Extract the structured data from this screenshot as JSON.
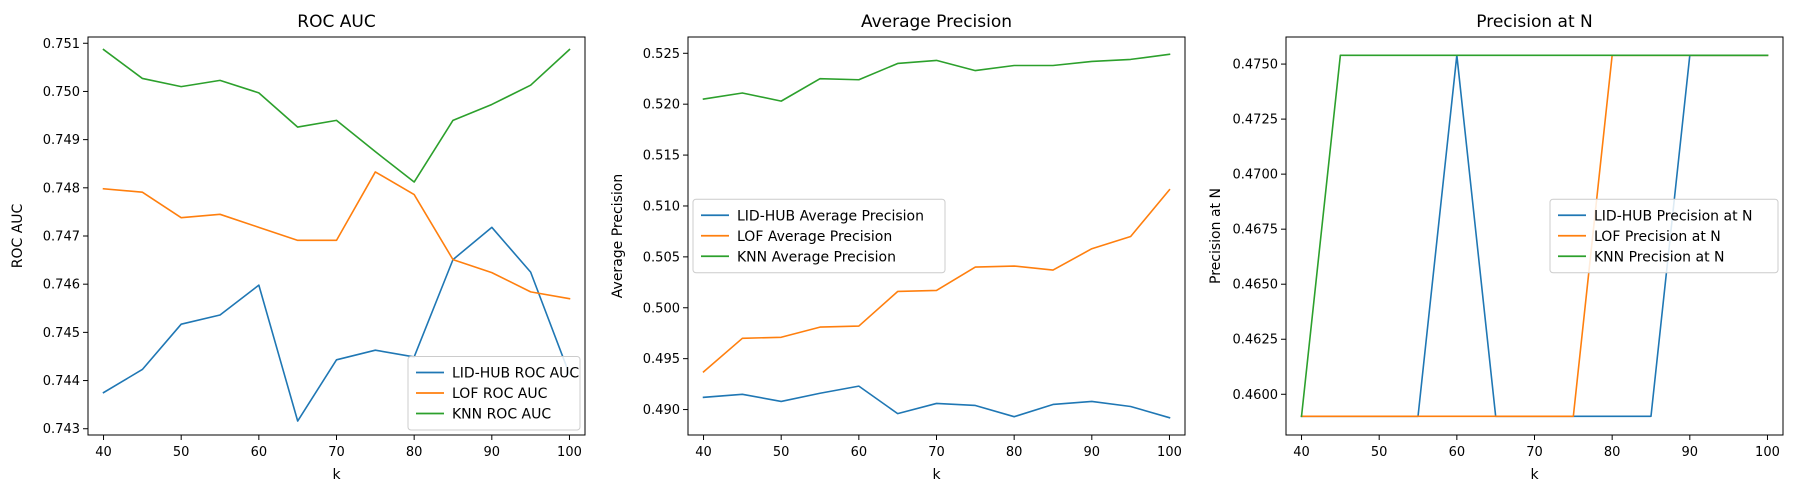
{
  "figure": {
    "background": "#ffffff",
    "colors": {
      "LID-HUB": "#1f77b4",
      "LOF": "#ff7f0e",
      "KNN": "#2ca02c"
    }
  },
  "chart_data": [
    {
      "type": "line",
      "title": "ROC AUC",
      "xlabel": "k",
      "ylabel": "ROC AUC",
      "x": [
        40,
        45,
        50,
        55,
        60,
        65,
        70,
        75,
        80,
        85,
        90,
        95,
        100
      ],
      "xlim": [
        38,
        102
      ],
      "xticks": [
        40,
        50,
        60,
        70,
        80,
        90,
        100
      ],
      "ylim": [
        0.74287,
        0.75113
      ],
      "yticks": [
        0.743,
        0.744,
        0.745,
        0.746,
        0.747,
        0.748,
        0.749,
        0.75,
        0.751
      ],
      "ytick_labels": [
        "0.743",
        "0.744",
        "0.745",
        "0.746",
        "0.747",
        "0.748",
        "0.749",
        "0.750",
        "0.751"
      ],
      "legend": "lower-right",
      "grid": false,
      "series": [
        {
          "name": "LID-HUB ROC AUC",
          "color": "#1f77b4",
          "values": [
            0.74375,
            0.74423,
            0.74517,
            0.74536,
            0.74598,
            0.74316,
            0.74443,
            0.74463,
            0.74449,
            0.74651,
            0.74718,
            0.74625,
            0.74413
          ]
        },
        {
          "name": "LOF ROC AUC",
          "color": "#ff7f0e",
          "values": [
            0.74798,
            0.74791,
            0.74738,
            0.74745,
            0.74718,
            0.74691,
            0.74691,
            0.74833,
            0.74786,
            0.74651,
            0.74624,
            0.74584,
            0.7457
          ]
        },
        {
          "name": "KNN ROC AUC",
          "color": "#2ca02c",
          "values": [
            0.75087,
            0.75027,
            0.7501,
            0.75023,
            0.74997,
            0.74926,
            0.7494,
            0.74875,
            0.74812,
            0.7494,
            0.74973,
            0.75013,
            0.75087
          ]
        }
      ]
    },
    {
      "type": "line",
      "title": "Average Precision",
      "xlabel": "k",
      "ylabel": "Average Precision",
      "x": [
        40,
        45,
        50,
        55,
        60,
        65,
        70,
        75,
        80,
        85,
        90,
        95,
        100
      ],
      "xlim": [
        38,
        102
      ],
      "xticks": [
        40,
        50,
        60,
        70,
        80,
        90,
        100
      ],
      "ylim": [
        0.4875,
        0.5266
      ],
      "yticks": [
        0.49,
        0.495,
        0.5,
        0.505,
        0.51,
        0.515,
        0.52,
        0.525
      ],
      "ytick_labels": [
        "0.490",
        "0.495",
        "0.500",
        "0.505",
        "0.510",
        "0.515",
        "0.520",
        "0.525"
      ],
      "legend": "center-left",
      "grid": false,
      "series": [
        {
          "name": "LID-HUB Average Precision",
          "color": "#1f77b4",
          "values": [
            0.4912,
            0.4915,
            0.4908,
            0.4916,
            0.4923,
            0.4896,
            0.4906,
            0.4904,
            0.4893,
            0.4905,
            0.4908,
            0.4903,
            0.4892
          ]
        },
        {
          "name": "LOF Average Precision",
          "color": "#ff7f0e",
          "values": [
            0.4937,
            0.497,
            0.4971,
            0.4981,
            0.4982,
            0.5016,
            0.5017,
            0.504,
            0.5041,
            0.5037,
            0.5058,
            0.507,
            0.5116
          ]
        },
        {
          "name": "KNN Average Precision",
          "color": "#2ca02c",
          "values": [
            0.5205,
            0.5211,
            0.5203,
            0.5225,
            0.5224,
            0.524,
            0.5243,
            0.5233,
            0.5238,
            0.5238,
            0.5242,
            0.5244,
            0.5249
          ]
        }
      ]
    },
    {
      "type": "line",
      "title": "Precision at N",
      "xlabel": "k",
      "ylabel": "Precision at N",
      "x": [
        40,
        45,
        50,
        55,
        60,
        65,
        70,
        75,
        80,
        85,
        90,
        95,
        100
      ],
      "xlim": [
        38,
        102
      ],
      "xticks": [
        40,
        50,
        60,
        70,
        80,
        90,
        100
      ],
      "ylim": [
        0.45815,
        0.47623
      ],
      "yticks": [
        0.46,
        0.4625,
        0.465,
        0.4675,
        0.47,
        0.4725,
        0.475
      ],
      "ytick_labels": [
        "0.4600",
        "0.4625",
        "0.4650",
        "0.4675",
        "0.4700",
        "0.4725",
        "0.4750"
      ],
      "legend": "center-right",
      "grid": false,
      "series": [
        {
          "name": "LID-HUB Precision at N",
          "color": "#1f77b4",
          "values": [
            0.459,
            0.459,
            0.459,
            0.459,
            0.4754,
            0.459,
            0.459,
            0.459,
            0.459,
            0.459,
            0.4754,
            0.4754,
            0.4754
          ]
        },
        {
          "name": "LOF Precision at N",
          "color": "#ff7f0e",
          "values": [
            0.459,
            0.459,
            0.459,
            0.459,
            0.459,
            0.459,
            0.459,
            0.459,
            0.4754,
            0.4754,
            0.4754,
            0.4754,
            0.4754
          ]
        },
        {
          "name": "KNN Precision at N",
          "color": "#2ca02c",
          "values": [
            0.459,
            0.4754,
            0.4754,
            0.4754,
            0.4754,
            0.4754,
            0.4754,
            0.4754,
            0.4754,
            0.4754,
            0.4754,
            0.4754,
            0.4754
          ]
        }
      ]
    }
  ]
}
